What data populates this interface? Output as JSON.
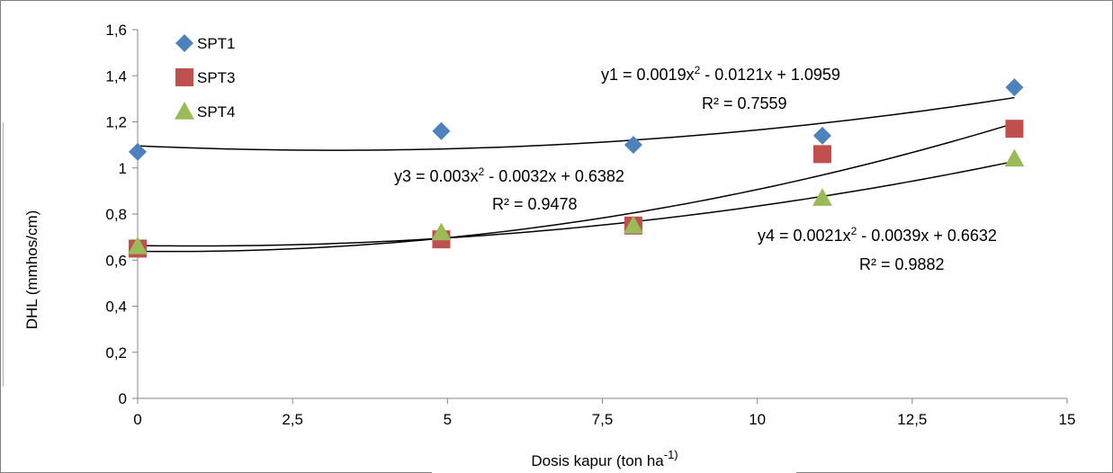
{
  "chart_data": {
    "type": "scatter",
    "title": "",
    "xlabel": "Dosis kapur (ton ha",
    "xlabel_sup": "-1)",
    "ylabel": "DHL (mmhos/cm)",
    "xlim": [
      0,
      15
    ],
    "ylim": [
      0,
      1.6
    ],
    "xticks": [
      0,
      2.5,
      5,
      7.5,
      10,
      12.5,
      15
    ],
    "xtick_labels": [
      "0",
      "2,5",
      "5",
      "7,5",
      "10",
      "12,5",
      "15"
    ],
    "yticks": [
      0,
      0.2,
      0.4,
      0.6,
      0.8,
      1.0,
      1.2,
      1.4,
      1.6
    ],
    "ytick_labels": [
      "0",
      "0,2",
      "0,4",
      "0,6",
      "0,8",
      "1",
      "1,2",
      "1,4",
      "1,6"
    ],
    "grid": false,
    "legend_position": "top-left",
    "series": [
      {
        "name": "SPT1",
        "marker": "diamond",
        "color": "#4f81bd",
        "x": [
          0,
          4.9,
          8,
          11.05,
          14.15
        ],
        "y": [
          1.07,
          1.16,
          1.1,
          1.14,
          1.35
        ],
        "fit": {
          "a": 0.0019,
          "b": -0.0121,
          "c": 1.0959
        },
        "equation": {
          "lhs": "y1 = 0.0019x",
          "sup": "2",
          "rhs": " - 0.0121x + 1.0959",
          "r2": "R² = 0.7559"
        }
      },
      {
        "name": "SPT3",
        "marker": "square",
        "color": "#c0504d",
        "x": [
          0,
          4.9,
          8,
          11.05,
          14.15
        ],
        "y": [
          0.65,
          0.69,
          0.75,
          1.06,
          1.17
        ],
        "fit": {
          "a": 0.003,
          "b": -0.0032,
          "c": 0.6382
        },
        "equation": {
          "lhs": "y3 = 0.003x",
          "sup": "2",
          "rhs": " - 0.0032x + 0.6382",
          "r2": "R² = 0.9478"
        }
      },
      {
        "name": "SPT4",
        "marker": "triangle",
        "color": "#9bbb59",
        "x": [
          0,
          4.9,
          8,
          11.05,
          14.15
        ],
        "y": [
          0.66,
          0.72,
          0.75,
          0.87,
          1.04
        ],
        "fit": {
          "a": 0.0021,
          "b": -0.0039,
          "c": 0.6632
        },
        "equation": {
          "lhs": "y4 = 0.0021x",
          "sup": "2",
          "rhs": " - 0.0039x + 0.6632",
          "r2": "R² = 0.9882"
        }
      }
    ]
  }
}
